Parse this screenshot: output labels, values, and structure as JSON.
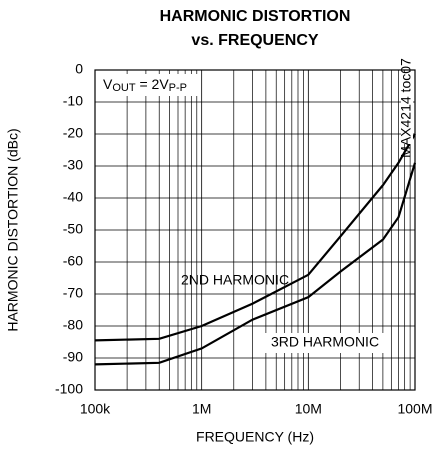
{
  "chart_data": {
    "type": "line",
    "title": [
      "HARMONIC DISTORTION",
      "vs. FREQUENCY"
    ],
    "x_label": "FREQUENCY (Hz)",
    "y_label": "HARMONIC DISTORTION (dBc)",
    "log_x": true,
    "grid": true,
    "x": [
      100000,
      400000,
      1000000,
      3000000,
      10000000,
      20000000,
      50000000,
      70000000,
      100000000
    ],
    "series": [
      {
        "name": "2ND HARMONIC",
        "color": "#000000",
        "values": [
          -84.5,
          -84,
          -80,
          -73,
          -64,
          -52,
          -36,
          -29,
          -20
        ]
      },
      {
        "name": "3RD HARMONIC",
        "color": "#000000",
        "values": [
          -92,
          -91.5,
          -87,
          -78,
          -71,
          -63,
          -53,
          -46,
          -29
        ]
      }
    ],
    "xlim": [
      100000,
      100000000
    ],
    "xticks": [
      {
        "value": 100000,
        "label": "100k"
      },
      {
        "value": 1000000,
        "label": "1M"
      },
      {
        "value": 10000000,
        "label": "10M"
      },
      {
        "value": 100000000,
        "label": "100M"
      }
    ],
    "ylim": [
      -100,
      0
    ],
    "yticks": [
      0,
      -10,
      -20,
      -30,
      -40,
      -50,
      -60,
      -70,
      -80,
      -90,
      -100
    ],
    "annotation": [
      {
        "text": "V"
      },
      {
        "text": "OUT",
        "sub": true
      },
      {
        "text": " = 2V"
      },
      {
        "text": "P-P",
        "sub": true
      }
    ],
    "figure_id": "MAX4214 toc07"
  }
}
